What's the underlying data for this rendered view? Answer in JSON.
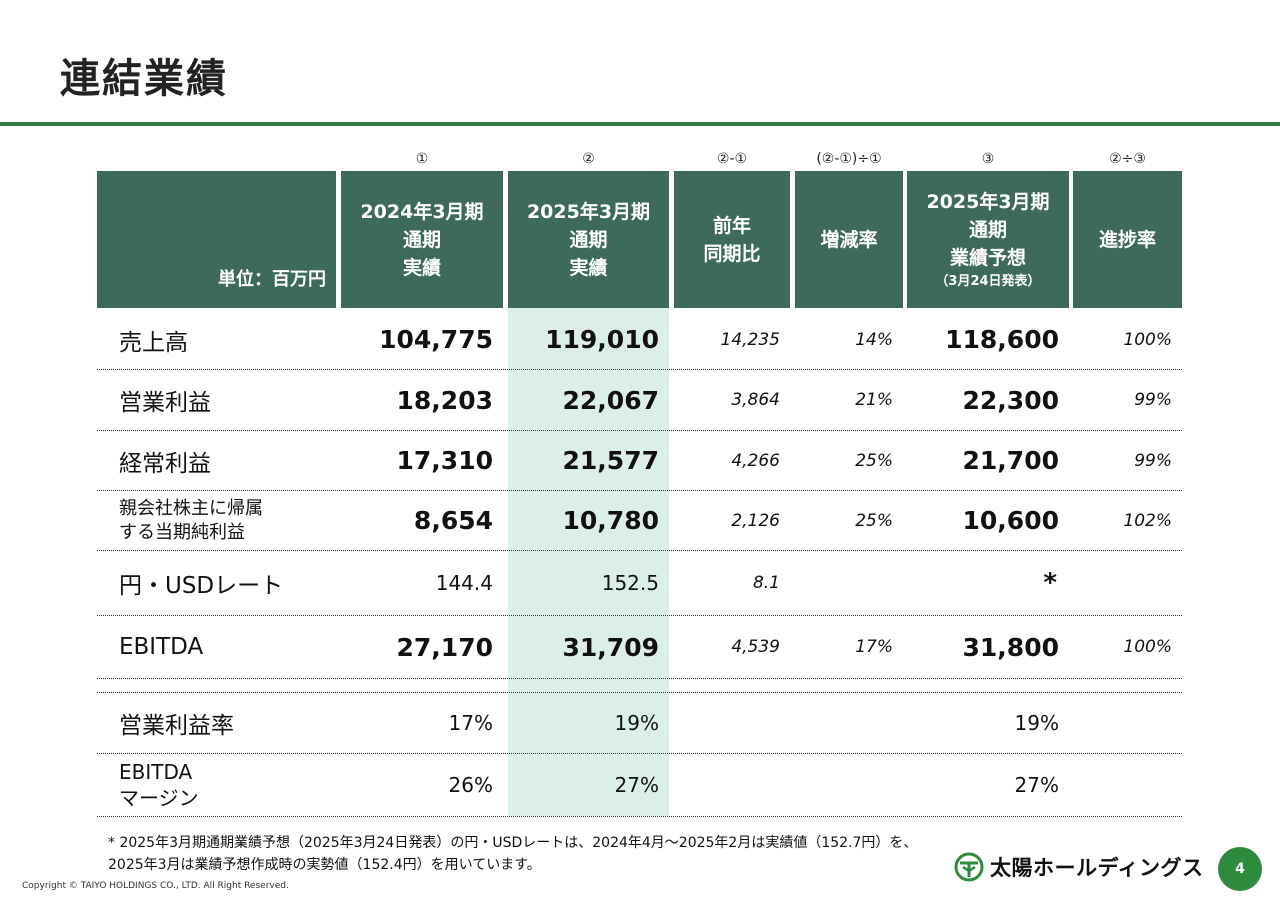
{
  "title": "連結業績",
  "col_marks": [
    "①",
    "②",
    "②-①",
    "(②-①)÷①",
    "③",
    "②÷③"
  ],
  "header": {
    "unit": "単位：百万円",
    "col1": [
      "2024年3月期",
      "通期",
      "実績"
    ],
    "col2": [
      "2025年3月期",
      "通期",
      "実績"
    ],
    "col3": [
      "前年",
      "同期比"
    ],
    "col4": "増減率",
    "col5": [
      "2025年3月期",
      "通期",
      "業績予想",
      "（3月24日発表）"
    ],
    "col6": "進捗率"
  },
  "rows": [
    {
      "label": "売上高",
      "fy24": "104,775",
      "fy25": "119,010",
      "yoy": "14,235",
      "rate": "14%",
      "forecast": "118,600",
      "progress": "100%"
    },
    {
      "label": "営業利益",
      "fy24": "18,203",
      "fy25": "22,067",
      "yoy": "3,864",
      "rate": "21%",
      "forecast": "22,300",
      "progress": "99%"
    },
    {
      "label": "経常利益",
      "fy24": "17,310",
      "fy25": "21,577",
      "yoy": "4,266",
      "rate": "25%",
      "forecast": "21,700",
      "progress": "99%"
    },
    {
      "label_lines": [
        "親会社株主に帰属",
        "する当期純利益"
      ],
      "fy24": "8,654",
      "fy25": "10,780",
      "yoy": "2,126",
      "rate": "25%",
      "forecast": "10,600",
      "progress": "102%"
    },
    {
      "label": "円・USDレート",
      "fy24": "144.4",
      "fy25": "152.5",
      "yoy": "8.1",
      "rate": "",
      "forecast": "*",
      "progress": ""
    },
    {
      "label": "EBITDA",
      "fy24": "27,170",
      "fy25": "31,709",
      "yoy": "4,539",
      "rate": "17%",
      "forecast": "31,800",
      "progress": "100%"
    },
    {
      "label": "営業利益率",
      "fy24": "17%",
      "fy25": "19%",
      "forecast": "19%"
    },
    {
      "label_lines": [
        "EBITDA",
        "マージン"
      ],
      "fy24": "26%",
      "fy25": "27%",
      "forecast": "27%"
    }
  ],
  "footnote": [
    "* 2025年3月期通期業績予想（2025年3月24日発表）の円・USDレートは、2024年4月～2025年2月は実績値（152.7円）を、",
    "2025年3月は業績予想作成時の実勢値（152.4円）を用いています。"
  ],
  "copyright": "Copyright © TAIYO HOLDINGS CO., LTD.  All Right Reserved.",
  "logo_text": "太陽ホールディングス",
  "logo_icon": "taiyo-logo-icon",
  "page_number": "4",
  "colors": {
    "header_bg": "#3d6a5a",
    "highlight": "#dcefe6",
    "accent": "#2e7d3e"
  }
}
